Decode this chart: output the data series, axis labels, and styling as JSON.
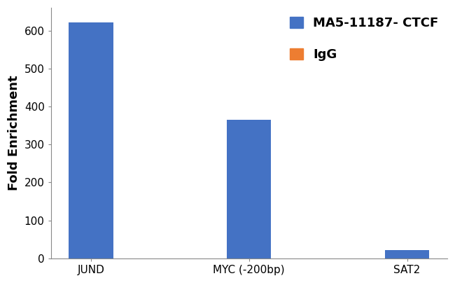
{
  "categories": [
    "JUND",
    "MYC (-200bp)",
    "SAT2"
  ],
  "values": [
    622,
    365,
    22
  ],
  "bar_color": "#4472C4",
  "igg_color": "#ED7D31",
  "ylabel": "Fold Enrichment",
  "ylim": [
    0,
    660
  ],
  "yticks": [
    0,
    100,
    200,
    300,
    400,
    500,
    600
  ],
  "legend_labels": [
    "MA5-11187- CTCF",
    "IgG"
  ],
  "background_color": "#ffffff",
  "bar_width": 0.28,
  "axis_label_fontsize": 13,
  "tick_fontsize": 11,
  "legend_fontsize": 13
}
